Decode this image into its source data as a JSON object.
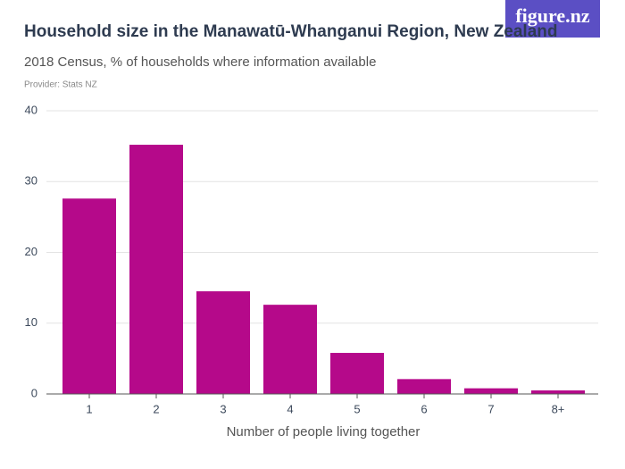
{
  "chart_data": {
    "type": "bar",
    "logo": "figure.nz",
    "title": "Household size in the Manawatū-Whanganui Region, New Zealand",
    "subtitle": "2018 Census, % of households where information available",
    "source": "Provider: Stats NZ",
    "x_label": "Number of people living together",
    "categories": [
      "1",
      "2",
      "3",
      "4",
      "5",
      "6",
      "7",
      "8+"
    ],
    "values": [
      27.6,
      35.2,
      14.5,
      12.6,
      5.8,
      2.1,
      0.8,
      0.5
    ],
    "color": "#b5098a",
    "ylim": [
      0,
      40
    ],
    "yticks": [
      0,
      10,
      20,
      30,
      40
    ],
    "grid": true
  }
}
